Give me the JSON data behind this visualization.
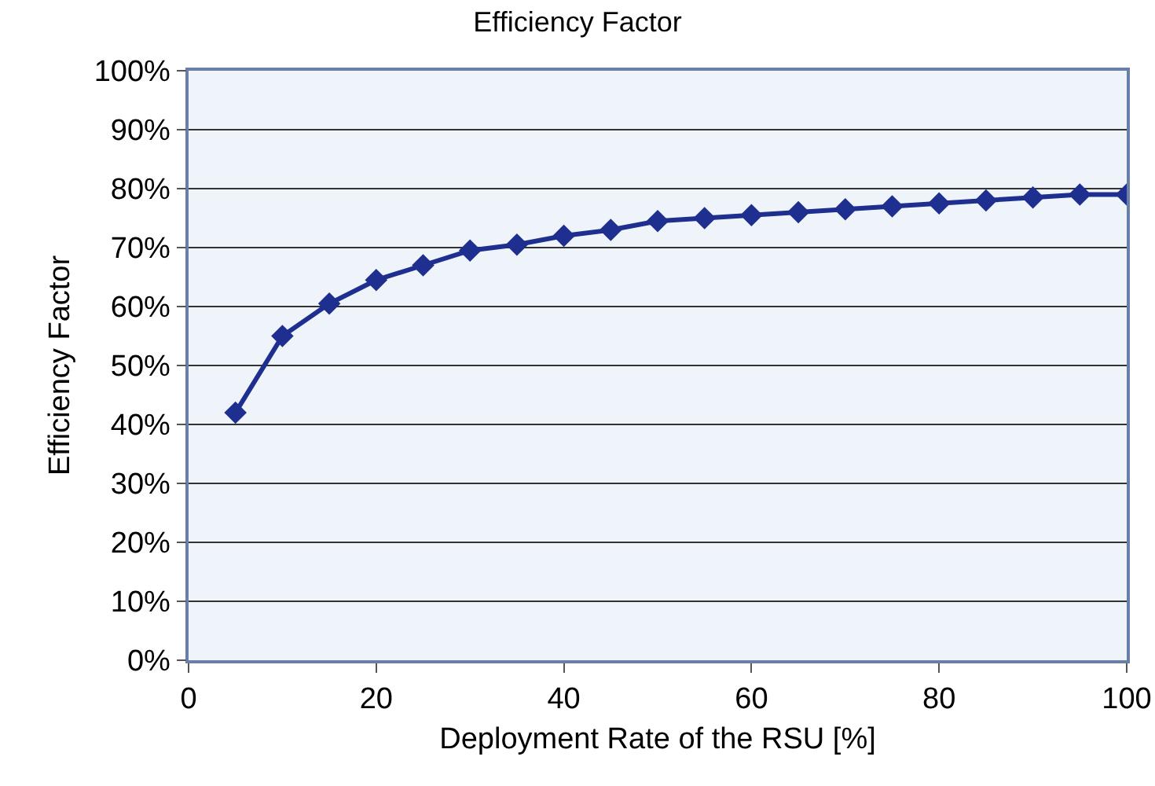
{
  "chart_data": {
    "type": "line",
    "title": "Efficiency Factor",
    "xlabel": "Deployment Rate of the RSU [%]",
    "ylabel": "Efficiency Factor",
    "x": [
      5,
      10,
      15,
      20,
      25,
      30,
      35,
      40,
      45,
      50,
      55,
      60,
      65,
      70,
      75,
      80,
      85,
      90,
      95,
      100
    ],
    "series": [
      {
        "color": "#1f2f8f",
        "values": [
          42,
          55,
          60.5,
          64.5,
          67,
          69.5,
          70.5,
          72,
          73,
          74.5,
          75,
          75.5,
          76,
          76.5,
          77,
          77.5,
          78,
          78.5,
          79,
          79
        ]
      }
    ],
    "xlim": [
      0,
      100
    ],
    "xticks": [
      0,
      20,
      40,
      60,
      80,
      100
    ],
    "ylim": [
      0,
      100
    ],
    "yticks": [
      {
        "value": 0,
        "label": "0%"
      },
      {
        "value": 10,
        "label": "10%"
      },
      {
        "value": 20,
        "label": "20%"
      },
      {
        "value": 30,
        "label": "30%"
      },
      {
        "value": 40,
        "label": "40%"
      },
      {
        "value": 50,
        "label": "50%"
      },
      {
        "value": 60,
        "label": "60%"
      },
      {
        "value": 70,
        "label": "70%"
      },
      {
        "value": 80,
        "label": "80%"
      },
      {
        "value": 90,
        "label": "90%"
      },
      {
        "value": 100,
        "label": "100%"
      }
    ],
    "grid": "y",
    "marker": "diamond",
    "line_style": "solid",
    "legend": false
  }
}
